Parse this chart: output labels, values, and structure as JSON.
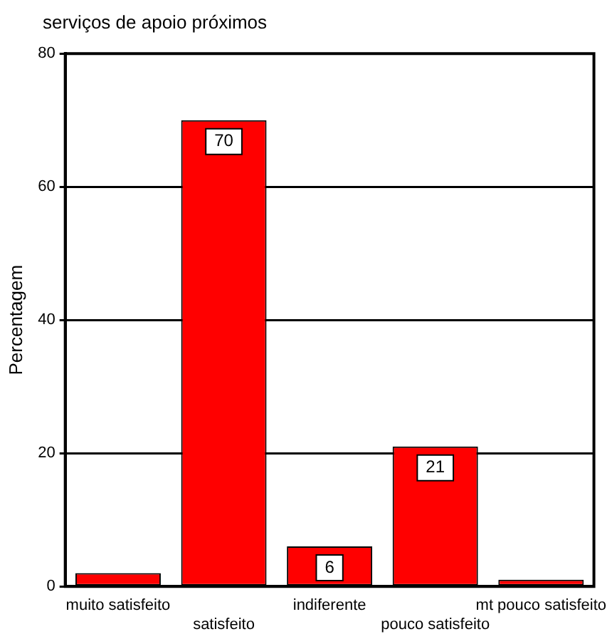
{
  "chart_data": {
    "type": "bar",
    "title": "serviços de apoio próximos",
    "ylabel": "Percentagem",
    "categories": [
      "muito satisfeito",
      "satisfeito",
      "indiferente",
      "pouco satisfeito",
      "mt pouco satisfeito"
    ],
    "values": [
      2,
      70,
      6,
      21,
      1
    ],
    "value_labels": [
      null,
      "70",
      "6",
      "21",
      null
    ],
    "color": "#ff0000",
    "ylim": [
      0,
      80
    ],
    "yticks": [
      0,
      20,
      40,
      60,
      80
    ],
    "grid": "y",
    "legend": false
  }
}
